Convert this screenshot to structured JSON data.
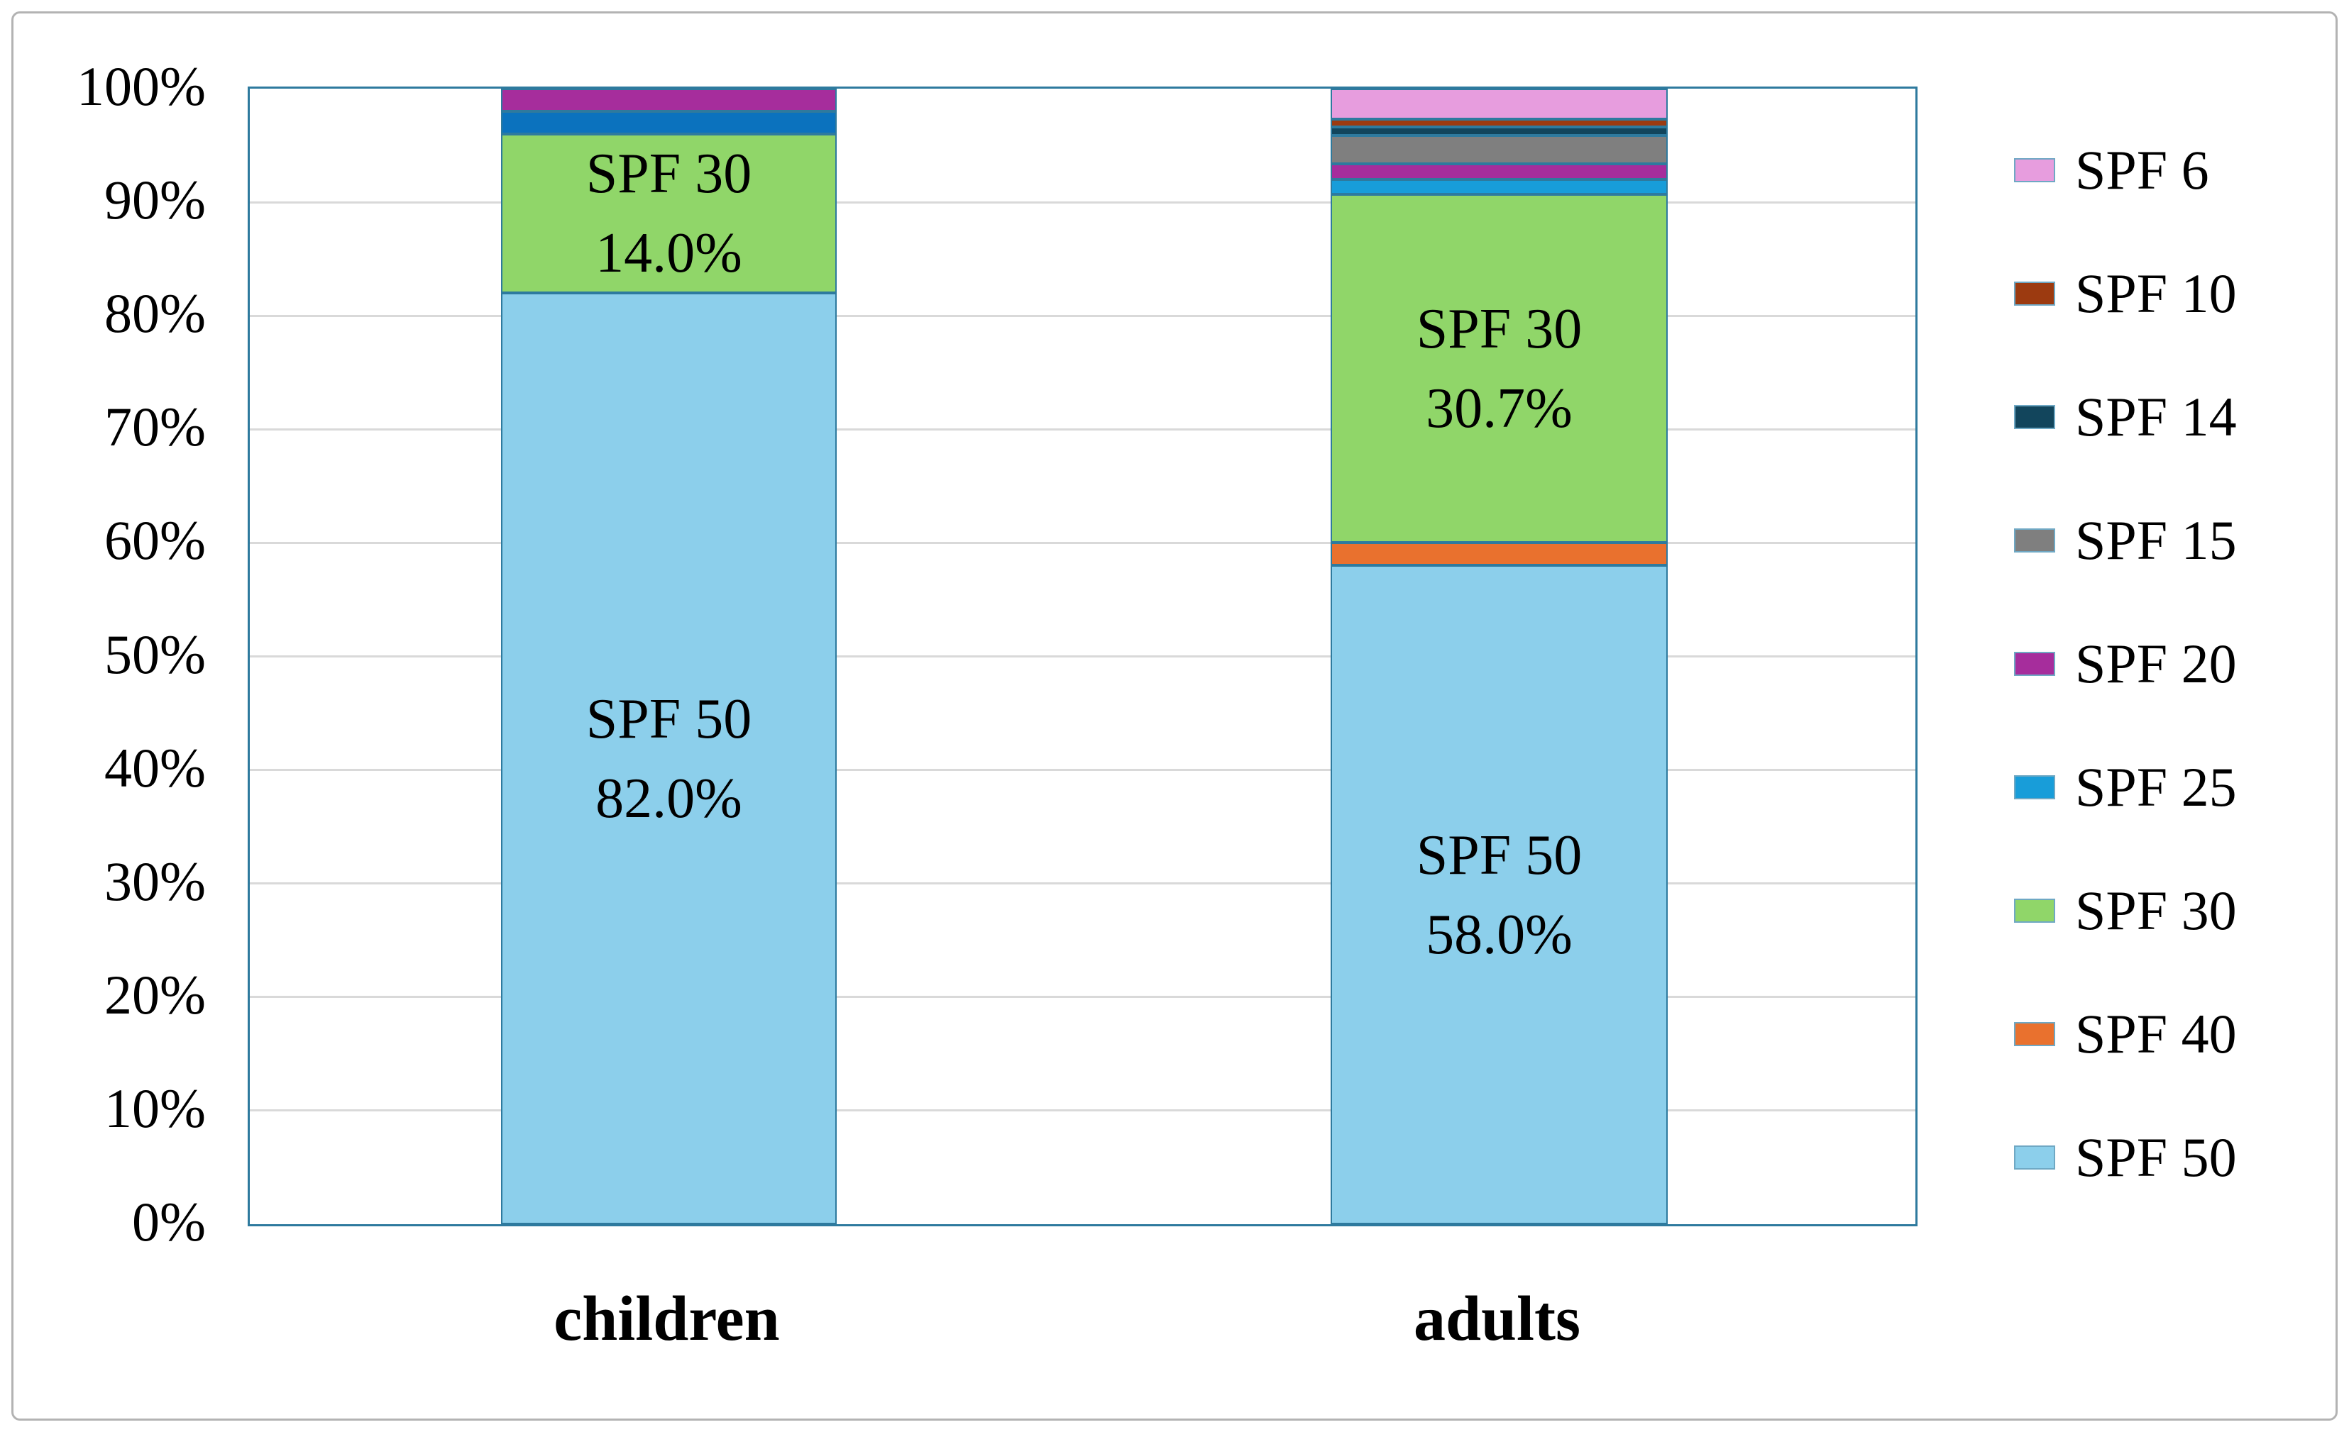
{
  "chart_data": {
    "type": "bar",
    "variant": "stacked-100-percent-column",
    "title": "",
    "xlabel": "",
    "ylabel": "",
    "units": "%",
    "ylim": [
      0,
      100
    ],
    "grid": "horizontal",
    "yticks": [
      "0%",
      "10%",
      "20%",
      "30%",
      "40%",
      "50%",
      "60%",
      "70%",
      "80%",
      "90%",
      "100%"
    ],
    "categories": [
      "children",
      "adults"
    ],
    "legend_position": "right",
    "legend": [
      {
        "label": "SPF 6",
        "color": "#e79dde"
      },
      {
        "label": "SPF 10",
        "color": "#9c3a10"
      },
      {
        "label": "SPF 14",
        "color": "#12455c"
      },
      {
        "label": "SPF 15",
        "color": "#7f7f7f"
      },
      {
        "label": "SPF 20",
        "color": "#a62d9c"
      },
      {
        "label": "SPF 25",
        "color": "#189dd9"
      },
      {
        "label": "SPF 30",
        "color": "#90d669"
      },
      {
        "label": "SPF 40",
        "color": "#e9712e"
      },
      {
        "label": "SPF 50",
        "color": "#8ccfeb"
      }
    ],
    "series": [
      {
        "name": "SPF 6",
        "color": "#e79dde",
        "values": [
          0,
          2.7
        ]
      },
      {
        "name": "SPF 10",
        "color": "#9c3a10",
        "values": [
          0,
          0.7
        ]
      },
      {
        "name": "SPF 14",
        "color": "#12455c",
        "values": [
          0,
          0.7
        ]
      },
      {
        "name": "SPF 15",
        "color": "#7f7f7f",
        "values": [
          0,
          2.5
        ]
      },
      {
        "name": "SPF 20",
        "color": "#a62d9c",
        "values": [
          2.0,
          1.4
        ]
      },
      {
        "name": "SPF 25",
        "color": "#189dd9",
        "values": [
          2.0,
          1.3
        ]
      },
      {
        "name": "SPF 30",
        "color": "#90d669",
        "values": [
          14.0,
          30.7
        ]
      },
      {
        "name": "SPF 40",
        "color": "#e9712e",
        "values": [
          0,
          2.0
        ]
      },
      {
        "name": "SPF 50",
        "color": "#8ccfeb",
        "values": [
          82.0,
          58.0
        ]
      }
    ],
    "stack_order_bottom_to_top": [
      "SPF 50",
      "SPF 40",
      "SPF 30",
      "SPF 25",
      "SPF 20",
      "SPF 15",
      "SPF 14",
      "SPF 10",
      "SPF 6"
    ],
    "render_color_overrides": {
      "children": {
        "SPF 25": "#0b72be"
      }
    },
    "data_labels": [
      {
        "category": "children",
        "series": "SPF 30",
        "lines": [
          "SPF 30",
          "14.0%"
        ]
      },
      {
        "category": "children",
        "series": "SPF 50",
        "lines": [
          "SPF 50",
          "82.0%"
        ]
      },
      {
        "category": "adults",
        "series": "SPF 30",
        "lines": [
          "SPF 30",
          "30.7%"
        ]
      },
      {
        "category": "adults",
        "series": "SPF 50",
        "lines": [
          "SPF 50",
          "58.0%"
        ]
      }
    ]
  },
  "style_colors": {
    "plot_border": "#2e7a9e",
    "segment_border": "#2e7a9e",
    "gridline": "#d9d9d9",
    "figure_border": "#b3b3b3",
    "background": "#ffffff"
  }
}
